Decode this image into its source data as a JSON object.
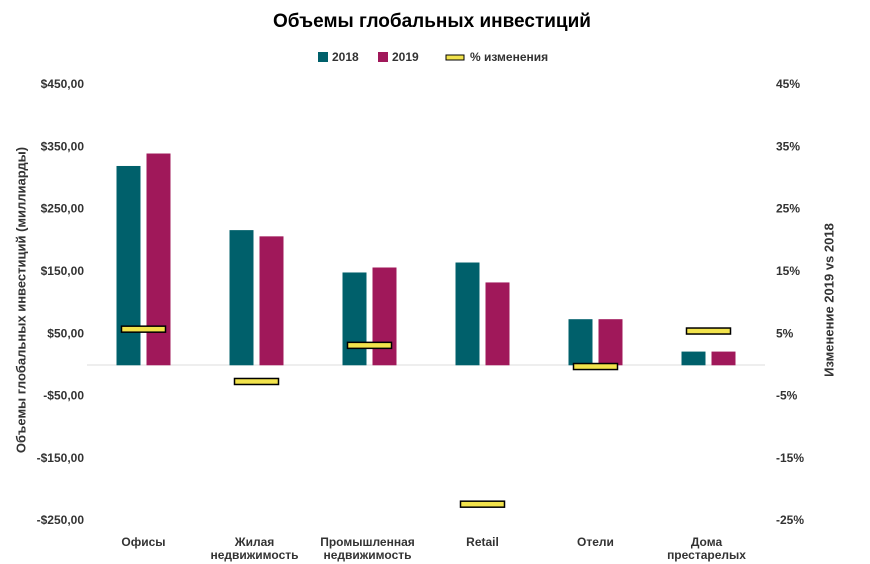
{
  "chart_data": {
    "type": "bar",
    "title": "Объемы глобальных инвестиций",
    "ylabel": "Объемы глобальных инвестиций (миллиарды)",
    "y2label": "Изменение 2019 vs 2018",
    "categories": [
      "Офисы",
      "Жилая недвижимость",
      "Промышленная недвижимость",
      "Retail",
      "Отели",
      "Дома престарелых"
    ],
    "series": [
      {
        "name": "2018",
        "color": "#00606b",
        "values": [
          320,
          217,
          149,
          165,
          74,
          22
        ]
      },
      {
        "name": "2019",
        "color": "#a0185a",
        "values": [
          340,
          207,
          157,
          133,
          74,
          22
        ]
      },
      {
        "name": "% изменения",
        "color": "#f2e34c",
        "axis": "y2",
        "marker": "dash",
        "values": [
          5.8,
          -2.6,
          3.2,
          -22.3,
          -0.2,
          5.5
        ]
      }
    ],
    "ylim": [
      -250,
      450
    ],
    "yticks": [
      {
        "value": 450,
        "label": "$450,00"
      },
      {
        "value": 350,
        "label": "$350,00"
      },
      {
        "value": 250,
        "label": "$250,00"
      },
      {
        "value": 150,
        "label": "$150,00"
      },
      {
        "value": 50,
        "label": "$50,00"
      },
      {
        "value": -50,
        "label": "-$50,00"
      },
      {
        "value": -150,
        "label": "-$150,00"
      },
      {
        "value": -250,
        "label": "-$250,00"
      }
    ],
    "y2lim": [
      -25,
      45
    ],
    "y2ticks": [
      {
        "value": 45,
        "label": "45%"
      },
      {
        "value": 35,
        "label": "35%"
      },
      {
        "value": 25,
        "label": "25%"
      },
      {
        "value": 15,
        "label": "15%"
      },
      {
        "value": 5,
        "label": "5%"
      },
      {
        "value": -5,
        "label": "-5%"
      },
      {
        "value": -15,
        "label": "-15%"
      },
      {
        "value": -25,
        "label": "-25%"
      }
    ],
    "grid": false,
    "legend": "top"
  }
}
